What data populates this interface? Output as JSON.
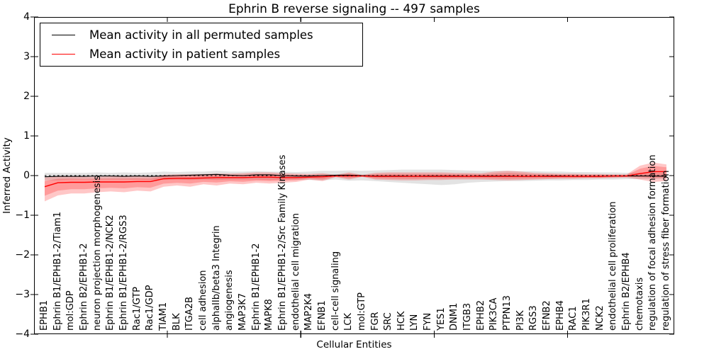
{
  "chart_data": {
    "type": "line",
    "title": "Ephrin B reverse signaling -- 497 samples",
    "xlabel": "Cellular Entities",
    "ylabel": "Inferred Activity",
    "ylim": [
      -4,
      4
    ],
    "yticks": [
      4,
      3,
      2,
      1,
      0,
      -1,
      -2,
      -3,
      -4
    ],
    "x_major_tick_positions": [
      10,
      20,
      30,
      40
    ],
    "grid": false,
    "legend_position": "upper left",
    "zero_reference_line": {
      "y": 0,
      "style": "dashed",
      "color": "#000000"
    },
    "categories": [
      "EPHB1",
      "Ephrin B1/EPHB1-2/Tiam1",
      "mol:GDP",
      "Ephrin B2/EPHB1-2",
      "neuron projection morphogenesis",
      "Ephrin B1/EPHB1-2/NCK2",
      "Ephrin B1/EPHB1-2/RGS3",
      "Rac1/GTP",
      "Rac1/GDP",
      "TIAM1",
      "BLK",
      "ITGA2B",
      "cell adhesion",
      "alphaIIb/beta3 Integrin",
      "angiogenesis",
      "MAP3K7",
      "Ephrin B1/EPHB1-2",
      "MAPK8",
      "Ephrin B1/EPHB1-2/Src Family Kinases",
      "endothelial cell migration",
      "MAP2K4",
      "EFNB1",
      "cell-cell signaling",
      "LCK",
      "mol:GTP",
      "FGR",
      "SRC",
      "HCK",
      "LYN",
      "FYN",
      "YES1",
      "DNM1",
      "ITGB3",
      "EPHB2",
      "PIK3CA",
      "PTPN13",
      "PI3K",
      "RGS3",
      "EFNB2",
      "EPHB4",
      "RAC1",
      "PIK3R1",
      "NCK2",
      "endothelial cell proliferation",
      "Ephrin B2/EPHB4",
      "chemotaxis",
      "regulation of focal adhesion formation",
      "regulation of stress fiber formation"
    ],
    "series": [
      {
        "name": "Mean activity in all permuted samples",
        "color": "#000000",
        "band_color": "#e2e2e2",
        "values": [
          -0.03,
          -0.02,
          -0.02,
          -0.02,
          -0.01,
          -0.01,
          -0.02,
          -0.01,
          -0.02,
          -0.01,
          0.0,
          0.01,
          0.02,
          0.03,
          0.01,
          0.0,
          0.02,
          0.02,
          0.0,
          -0.01,
          -0.01,
          0.0,
          0.01,
          0.01,
          0.0,
          -0.01,
          -0.01,
          -0.01,
          -0.02,
          -0.01,
          -0.01,
          -0.01,
          -0.02,
          -0.01,
          -0.01,
          -0.01,
          -0.02,
          -0.02,
          -0.01,
          -0.01,
          -0.02,
          -0.02,
          -0.02,
          -0.01,
          -0.01,
          -0.01,
          -0.01,
          -0.02
        ],
        "band_lower": [
          -0.12,
          -0.12,
          -0.1,
          -0.1,
          -0.1,
          -0.1,
          -0.1,
          -0.1,
          -0.11,
          -0.1,
          -0.1,
          -0.11,
          -0.1,
          -0.11,
          -0.1,
          -0.1,
          -0.1,
          -0.11,
          -0.1,
          -0.1,
          -0.11,
          -0.12,
          -0.1,
          -0.13,
          -0.12,
          -0.14,
          -0.16,
          -0.18,
          -0.2,
          -0.22,
          -0.24,
          -0.22,
          -0.18,
          -0.16,
          -0.15,
          -0.14,
          -0.14,
          -0.13,
          -0.12,
          -0.12,
          -0.11,
          -0.11,
          -0.1,
          -0.1,
          -0.09,
          -0.09,
          -0.09,
          -0.08
        ],
        "band_upper": [
          0.07,
          0.07,
          0.07,
          0.07,
          0.08,
          0.07,
          0.08,
          0.07,
          0.08,
          0.1,
          0.09,
          0.1,
          0.1,
          0.12,
          0.1,
          0.1,
          0.11,
          0.1,
          0.1,
          0.09,
          0.1,
          0.12,
          0.12,
          0.13,
          0.12,
          0.13,
          0.14,
          0.15,
          0.15,
          0.15,
          0.15,
          0.14,
          0.13,
          0.12,
          0.12,
          0.12,
          0.11,
          0.11,
          0.1,
          0.1,
          0.09,
          0.09,
          0.08,
          0.08,
          0.07,
          0.07,
          0.07,
          0.06
        ]
      },
      {
        "name": "Mean activity in patient samples",
        "color": "#ff0000",
        "band_color": "#f6b6b6",
        "values": [
          -0.28,
          -0.18,
          -0.17,
          -0.17,
          -0.16,
          -0.16,
          -0.16,
          -0.15,
          -0.15,
          -0.08,
          -0.07,
          -0.07,
          -0.06,
          -0.05,
          -0.05,
          -0.05,
          -0.04,
          -0.04,
          -0.05,
          -0.05,
          -0.04,
          -0.03,
          -0.01,
          -0.01,
          -0.01,
          -0.02,
          -0.02,
          -0.02,
          -0.02,
          -0.02,
          -0.02,
          -0.02,
          -0.02,
          -0.02,
          -0.02,
          -0.02,
          -0.02,
          -0.02,
          -0.02,
          -0.02,
          -0.02,
          -0.02,
          -0.02,
          -0.01,
          -0.01,
          0.05,
          0.1,
          0.1
        ],
        "band_lower": [
          -0.65,
          -0.5,
          -0.45,
          -0.45,
          -0.42,
          -0.4,
          -0.42,
          -0.38,
          -0.4,
          -0.28,
          -0.25,
          -0.28,
          -0.22,
          -0.25,
          -0.2,
          -0.22,
          -0.18,
          -0.2,
          -0.18,
          -0.16,
          -0.1,
          -0.14,
          -0.04,
          -0.1,
          -0.03,
          -0.1,
          -0.11,
          -0.12,
          -0.12,
          -0.11,
          -0.11,
          -0.1,
          -0.1,
          -0.1,
          -0.11,
          -0.12,
          -0.11,
          -0.1,
          -0.09,
          -0.08,
          -0.08,
          -0.07,
          -0.07,
          -0.06,
          -0.05,
          -0.1,
          -0.16,
          -0.14
        ],
        "band_upper": [
          -0.05,
          -0.02,
          -0.02,
          -0.03,
          -0.03,
          -0.02,
          -0.02,
          -0.02,
          -0.03,
          0.02,
          0.03,
          0.03,
          0.04,
          0.05,
          0.05,
          0.06,
          0.08,
          0.08,
          0.06,
          0.05,
          0.04,
          0.06,
          0.02,
          0.08,
          0.02,
          0.07,
          0.08,
          0.08,
          0.08,
          0.08,
          0.08,
          0.07,
          0.07,
          0.06,
          0.1,
          0.12,
          0.1,
          0.07,
          0.06,
          0.05,
          0.05,
          0.04,
          0.04,
          0.03,
          0.03,
          0.25,
          0.33,
          0.28
        ]
      }
    ]
  }
}
